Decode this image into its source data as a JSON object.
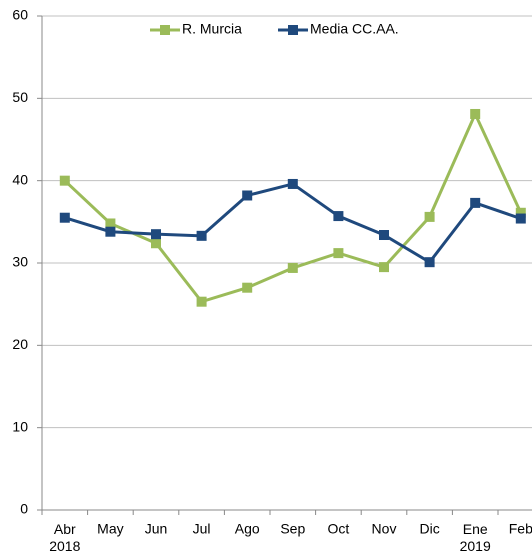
{
  "chart_data": {
    "type": "line",
    "categories": [
      "Abr 2018",
      "May",
      "Jun",
      "Jul",
      "Ago",
      "Sep",
      "Oct",
      "Nov",
      "Dic",
      "Ene 2019",
      "Feb"
    ],
    "series": [
      {
        "name": "R. Murcia",
        "color": "#9bbb59",
        "values": [
          40.0,
          34.8,
          32.4,
          25.3,
          27.0,
          29.4,
          31.2,
          29.5,
          35.6,
          48.1,
          36.1
        ]
      },
      {
        "name": "Media CC.AA.",
        "color": "#1f497d",
        "values": [
          35.5,
          33.8,
          33.5,
          33.3,
          38.2,
          39.6,
          35.7,
          33.4,
          30.1,
          37.3,
          35.4
        ]
      }
    ],
    "ylim": [
      0,
      60
    ],
    "yticks": [
      0,
      10,
      20,
      30,
      40,
      50,
      60
    ],
    "grid": true,
    "legend": "top"
  }
}
